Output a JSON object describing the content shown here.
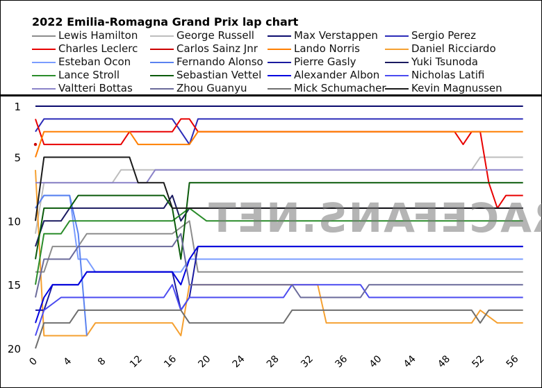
{
  "chart_data": {
    "type": "line",
    "title": "2022 Emilia-Romagna Grand Prix lap chart",
    "xlabel": "",
    "ylabel": "",
    "xlim": [
      0,
      58
    ],
    "ylim": [
      1,
      20
    ],
    "x_ticks": [
      0,
      4,
      8,
      12,
      16,
      20,
      24,
      28,
      32,
      36,
      40,
      44,
      48,
      52,
      56
    ],
    "y_ticks": [
      1,
      5,
      10,
      15,
      20
    ],
    "y_inverted": true,
    "legend_position": "top",
    "watermark": "RACEFANS.NET",
    "series": [
      {
        "name": "Lewis Hamilton",
        "color": "#8c8c8c",
        "points": [
          [
            0,
            14
          ],
          [
            1,
            14
          ],
          [
            2,
            12
          ],
          [
            5,
            12
          ],
          [
            6,
            11
          ],
          [
            16,
            11
          ],
          [
            18,
            10
          ],
          [
            19,
            14
          ],
          [
            57,
            14
          ]
        ]
      },
      {
        "name": "George Russell",
        "color": "#bdbdbd",
        "points": [
          [
            0,
            11
          ],
          [
            1,
            7
          ],
          [
            9,
            7
          ],
          [
            10,
            6
          ],
          [
            51,
            6
          ],
          [
            52,
            5
          ],
          [
            57,
            5
          ]
        ]
      },
      {
        "name": "Max Verstappen",
        "color": "#0b0b6e",
        "points": [
          [
            0,
            1
          ],
          [
            57,
            1
          ]
        ]
      },
      {
        "name": "Sergio Perez",
        "color": "#2b2bb8",
        "points": [
          [
            0,
            3
          ],
          [
            1,
            2
          ],
          [
            16,
            2
          ],
          [
            17,
            3
          ],
          [
            18,
            4
          ],
          [
            19,
            2
          ],
          [
            57,
            2
          ]
        ]
      },
      {
        "name": "Charles Leclerc",
        "color": "#e80000",
        "points": [
          [
            0,
            2
          ],
          [
            1,
            4
          ],
          [
            10,
            4
          ],
          [
            11,
            3
          ],
          [
            16,
            3
          ],
          [
            17,
            2
          ],
          [
            18,
            2
          ],
          [
            19,
            3
          ],
          [
            49,
            3
          ],
          [
            50,
            4
          ],
          [
            51,
            3
          ],
          [
            52,
            3
          ],
          [
            53,
            7
          ],
          [
            54,
            9
          ],
          [
            55,
            8
          ],
          [
            57,
            8
          ]
        ]
      },
      {
        "name": "Carlos Sainz Jnr",
        "color": "#cc0000",
        "points": [
          [
            0,
            4
          ],
          [
            0.2,
            4
          ]
        ]
      },
      {
        "name": "Lando Norris",
        "color": "#ff7f00",
        "points": [
          [
            0,
            5
          ],
          [
            1,
            3
          ],
          [
            11,
            3
          ],
          [
            12,
            4
          ],
          [
            18,
            4
          ],
          [
            19,
            3
          ],
          [
            57,
            3
          ]
        ]
      },
      {
        "name": "Daniel Ricciardo",
        "color": "#f5a030",
        "points": [
          [
            0,
            6
          ],
          [
            1,
            19
          ],
          [
            6,
            19
          ],
          [
            7,
            18
          ],
          [
            16,
            18
          ],
          [
            17,
            19
          ],
          [
            18,
            15
          ],
          [
            33,
            15
          ],
          [
            34,
            18
          ],
          [
            51,
            18
          ],
          [
            52,
            17
          ],
          [
            54,
            18
          ],
          [
            57,
            18
          ]
        ]
      },
      {
        "name": "Esteban Ocon",
        "color": "#7a9cff",
        "points": [
          [
            0,
            9
          ],
          [
            1,
            8
          ],
          [
            4,
            8
          ],
          [
            5,
            13
          ],
          [
            6,
            13
          ],
          [
            7,
            14
          ],
          [
            17,
            14
          ],
          [
            18,
            13
          ],
          [
            57,
            13
          ]
        ]
      },
      {
        "name": "Fernando Alonso",
        "color": "#5a82f0",
        "points": [
          [
            0,
            9
          ],
          [
            1,
            8
          ],
          [
            4,
            8
          ],
          [
            5,
            11
          ],
          [
            6,
            19
          ]
        ]
      },
      {
        "name": "Pierre Gasly",
        "color": "#1a1aa0",
        "points": [
          [
            0,
            17
          ],
          [
            1,
            17
          ],
          [
            2,
            15
          ],
          [
            5,
            15
          ],
          [
            6,
            14
          ],
          [
            16,
            14
          ],
          [
            17,
            17
          ],
          [
            18,
            16
          ],
          [
            19,
            12
          ],
          [
            57,
            12
          ]
        ]
      },
      {
        "name": "Yuki Tsunoda",
        "color": "#1a1a60",
        "points": [
          [
            0,
            12
          ],
          [
            1,
            10
          ],
          [
            3,
            10
          ],
          [
            4,
            9
          ],
          [
            15,
            9
          ],
          [
            16,
            8
          ],
          [
            17,
            10
          ],
          [
            18,
            9
          ],
          [
            57,
            9
          ]
        ]
      },
      {
        "name": "Lance Stroll",
        "color": "#2a8c2a",
        "points": [
          [
            0,
            15
          ],
          [
            1,
            11
          ],
          [
            3,
            11
          ],
          [
            4,
            10
          ],
          [
            16,
            10
          ],
          [
            18,
            9
          ],
          [
            20,
            10
          ],
          [
            57,
            10
          ]
        ]
      },
      {
        "name": "Sebastian Vettel",
        "color": "#0a5a0a",
        "points": [
          [
            0,
            13
          ],
          [
            1,
            9
          ],
          [
            4,
            9
          ],
          [
            5,
            8
          ],
          [
            15,
            8
          ],
          [
            16,
            9
          ],
          [
            17,
            13
          ],
          [
            18,
            7
          ],
          [
            57,
            7
          ]
        ]
      },
      {
        "name": "Alexander Albon",
        "color": "#0000e0",
        "points": [
          [
            0,
            18
          ],
          [
            1,
            16
          ],
          [
            2,
            15
          ],
          [
            5,
            15
          ],
          [
            6,
            14
          ],
          [
            16,
            14
          ],
          [
            17,
            15
          ],
          [
            18,
            13
          ],
          [
            19,
            12
          ],
          [
            57,
            12
          ]
        ]
      },
      {
        "name": "Nicholas Latifi",
        "color": "#4a4af0",
        "points": [
          [
            0,
            19
          ],
          [
            1,
            17
          ],
          [
            3,
            16
          ],
          [
            15,
            16
          ],
          [
            16,
            15
          ],
          [
            17,
            17
          ],
          [
            18,
            16
          ],
          [
            29,
            16
          ],
          [
            30,
            15
          ],
          [
            38,
            15
          ],
          [
            39,
            16
          ],
          [
            57,
            16
          ]
        ]
      },
      {
        "name": "Valtteri Bottas",
        "color": "#8a82c8",
        "points": [
          [
            0,
            7
          ],
          [
            1,
            7
          ],
          [
            13,
            7
          ],
          [
            14,
            6
          ],
          [
            57,
            6
          ]
        ]
      },
      {
        "name": "Zhou Guanyu",
        "color": "#6a6a9a",
        "points": [
          [
            0,
            16
          ],
          [
            1,
            13
          ],
          [
            4,
            13
          ],
          [
            5,
            12
          ],
          [
            16,
            12
          ],
          [
            17,
            11
          ],
          [
            18,
            15
          ],
          [
            30,
            15
          ],
          [
            31,
            16
          ],
          [
            38,
            16
          ],
          [
            39,
            15
          ],
          [
            57,
            15
          ]
        ]
      },
      {
        "name": "Mick Schumacher",
        "color": "#6e6e6e",
        "points": [
          [
            0,
            20
          ],
          [
            1,
            18
          ],
          [
            4,
            18
          ],
          [
            5,
            17
          ],
          [
            17,
            17
          ],
          [
            18,
            18
          ],
          [
            29,
            18
          ],
          [
            30,
            17
          ],
          [
            51,
            17
          ],
          [
            52,
            18
          ],
          [
            53,
            17
          ],
          [
            57,
            17
          ]
        ]
      },
      {
        "name": "Kevin Magnussen",
        "color": "#1a1a1a",
        "points": [
          [
            0,
            10
          ],
          [
            1,
            5
          ],
          [
            11,
            5
          ],
          [
            12,
            7
          ],
          [
            15,
            7
          ],
          [
            16,
            9
          ],
          [
            57,
            9
          ]
        ]
      }
    ]
  }
}
